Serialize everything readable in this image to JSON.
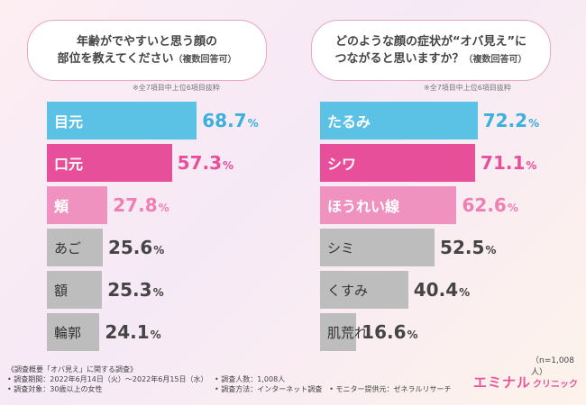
{
  "panels": [
    {
      "question_line1": "年齢がでやすいと思う顔の",
      "question_line2": "部位を教えてください",
      "question_note": "（複数回答可）",
      "sub_note": "※全7項目中上位6項目抜粋"
    },
    {
      "question_line1": "どのような顔の症状が“オバ見え”に",
      "question_line2": "つながると思いますか？",
      "question_note": "（複数回答可）",
      "sub_note": "※全7項目中上位6項目抜粋"
    }
  ],
  "chart_data": [
    {
      "type": "bar",
      "orientation": "horizontal",
      "categories": [
        "目元",
        "口元",
        "頬",
        "あご",
        "額",
        "輪郭"
      ],
      "values": [
        68.7,
        57.3,
        27.8,
        25.6,
        25.3,
        24.1
      ],
      "unit": "%",
      "bar_colors": [
        "#5bc2e6",
        "#e84f9b",
        "#ef92bf",
        "#bdbdbd",
        "#bdbdbd",
        "#bdbdbd"
      ],
      "value_colors": [
        "#3ab0dd",
        "#e84f9b",
        "#ef7fb2",
        "#444444",
        "#444444",
        "#444444"
      ],
      "label_colors": [
        "#ffffff",
        "#ffffff",
        "#ffffff",
        "#333333",
        "#333333",
        "#333333"
      ],
      "xlim": [
        0,
        100
      ]
    },
    {
      "type": "bar",
      "orientation": "horizontal",
      "categories": [
        "たるみ",
        "シワ",
        "ほうれい線",
        "シミ",
        "くすみ",
        "肌荒れ"
      ],
      "values": [
        72.2,
        71.1,
        62.6,
        52.5,
        40.4,
        16.6
      ],
      "unit": "%",
      "bar_colors": [
        "#5bc2e6",
        "#e84f9b",
        "#ef92bf",
        "#bdbdbd",
        "#bdbdbd",
        "#bdbdbd"
      ],
      "value_colors": [
        "#3ab0dd",
        "#e84f9b",
        "#ef7fb2",
        "#444444",
        "#444444",
        "#444444"
      ],
      "label_colors": [
        "#ffffff",
        "#ffffff",
        "#ffffff",
        "#333333",
        "#333333",
        "#333333"
      ],
      "xlim": [
        0,
        100
      ]
    }
  ],
  "n_note": "（n=1,008人）",
  "footer": {
    "line1": "《調査概要「オバ見え」に関する調査》",
    "line2": "• 調査期間：2022年6月14日（火）～2022年6月15日（水）",
    "line3": "• 調査対象：30歳以上の女性",
    "line4": "• 調査人数：1,008人",
    "line5": "• 調査方法：インターネット調査　• モニター提供元：ゼネラルリサーチ"
  },
  "logo": {
    "main": "エミナル",
    "sub": "クリニック"
  }
}
